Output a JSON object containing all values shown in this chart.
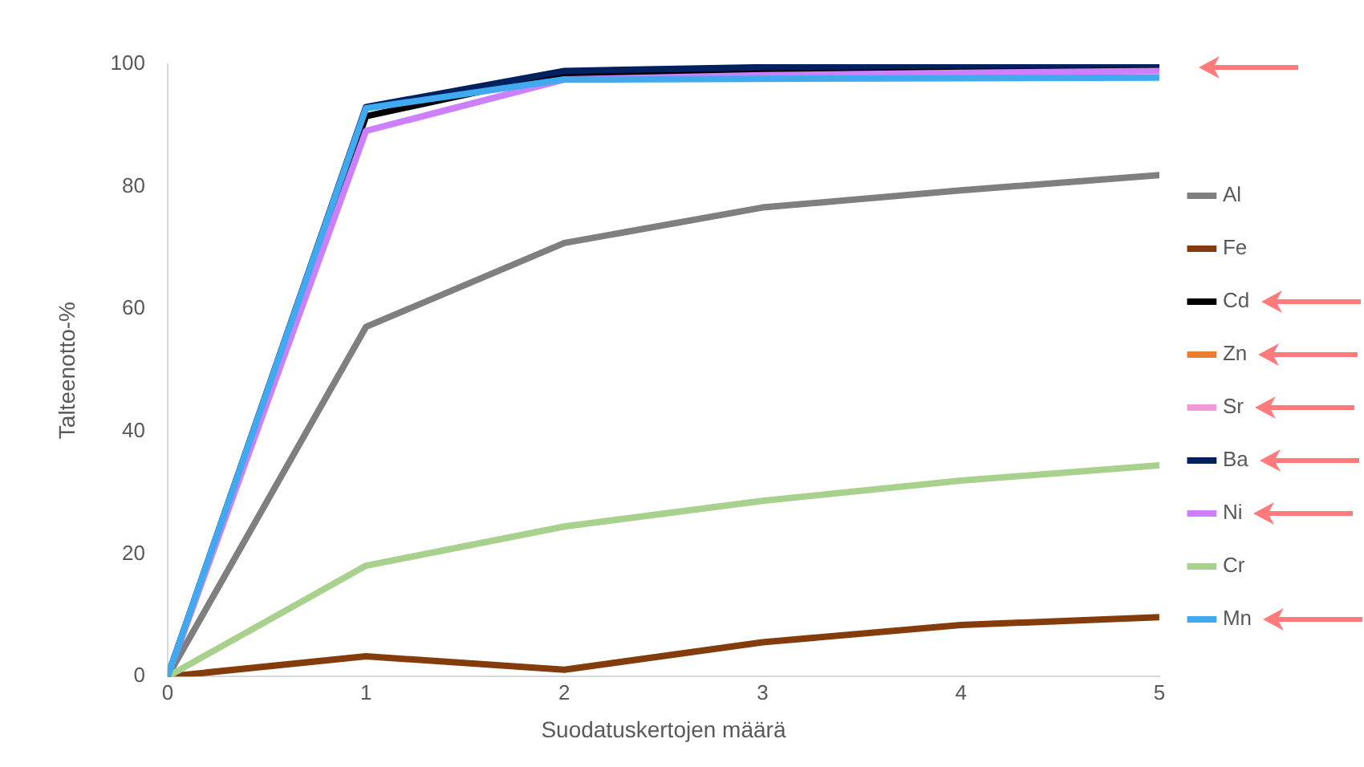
{
  "chart_data": {
    "type": "line",
    "xlabel": "Suodatuskertojen määrä",
    "ylabel": "Talteenotto-%",
    "x": [
      0,
      1,
      2,
      3,
      4,
      5
    ],
    "series": [
      {
        "name": "Al",
        "color": "#7f7f7f",
        "values": [
          0,
          57.1,
          70.8,
          76.6,
          79.4,
          81.9
        ]
      },
      {
        "name": "Fe",
        "color": "#843c0c",
        "values": [
          0,
          3.3,
          1.1,
          5.6,
          8.4,
          9.7
        ]
      },
      {
        "name": "Cd",
        "color": "#000000",
        "values": [
          0,
          91.5,
          98.5,
          99,
          99.3,
          99.5
        ]
      },
      {
        "name": "Zn",
        "color": "#ed7d31",
        "values": [
          null,
          null,
          null,
          null,
          null,
          null
        ]
      },
      {
        "name": "Sr",
        "color": "#f19ad8",
        "values": [
          null,
          null,
          null,
          null,
          null,
          null
        ]
      },
      {
        "name": "Ba",
        "color": "#002060",
        "values": [
          0,
          93,
          98.9,
          99.5,
          99.8,
          100
        ]
      },
      {
        "name": "Ni",
        "color": "#cc80ff",
        "values": [
          0,
          89.1,
          97.5,
          98.2,
          98.6,
          98.9
        ]
      },
      {
        "name": "Cr",
        "color": "#a9d18e",
        "values": [
          0,
          18.1,
          24.5,
          28.7,
          32,
          34.5
        ]
      },
      {
        "name": "Mn",
        "color": "#41a9ee",
        "values": [
          0,
          92.8,
          97.5,
          97.6,
          97.7,
          97.8
        ]
      }
    ],
    "xlim": [
      0,
      5
    ],
    "xticks": [
      0,
      1,
      2,
      3,
      4,
      5
    ],
    "ylim": [
      0,
      100
    ],
    "yticks": [
      0,
      20,
      40,
      60,
      80,
      100
    ],
    "grid": false,
    "legend": "right",
    "marker": "none",
    "line_style": "solid"
  }
}
